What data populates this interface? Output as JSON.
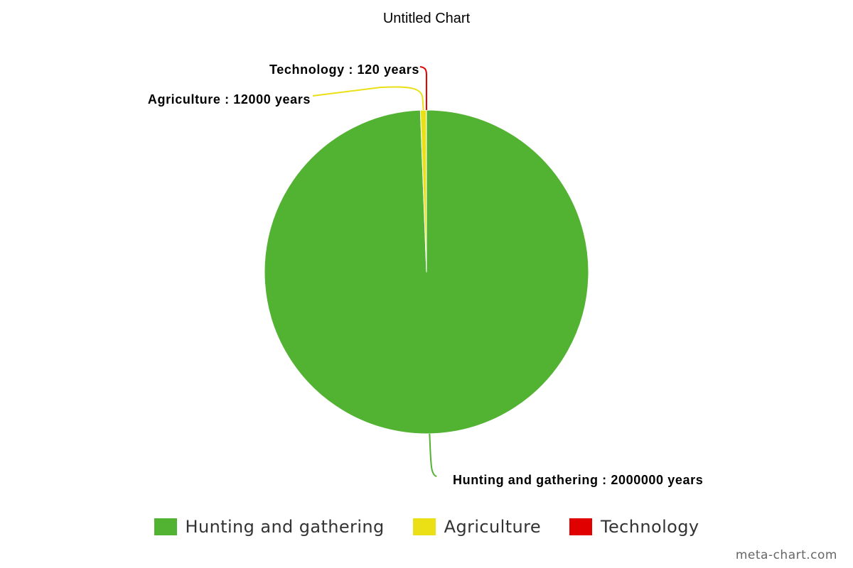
{
  "chart_data": {
    "type": "pie",
    "title": "Untitled Chart",
    "unit": "years",
    "categories": [
      "Hunting and gathering",
      "Agriculture",
      "Technology"
    ],
    "values": [
      2000000,
      12000,
      120
    ],
    "colors": [
      "#52b232",
      "#ebdf15",
      "#e00000"
    ],
    "data_labels": [
      "Hunting and gathering : 2000000 years",
      "Agriculture : 12000 years",
      "Technology : 120 years"
    ],
    "legend": {
      "placement": "bottom",
      "items": [
        "Hunting and gathering",
        "Agriculture",
        "Technology"
      ]
    }
  },
  "watermark": "meta-chart.com"
}
